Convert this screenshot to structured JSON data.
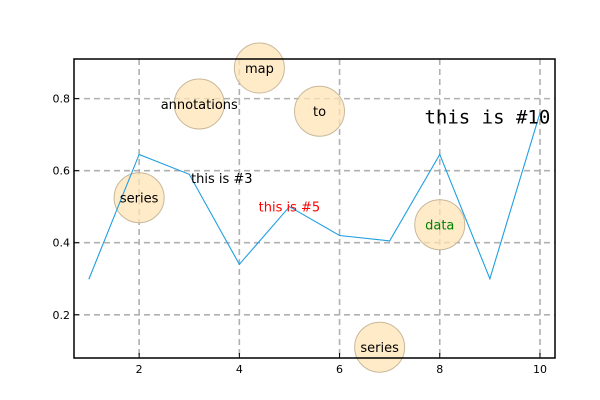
{
  "chart_data": {
    "type": "line",
    "x": [
      1,
      2,
      3,
      4,
      5,
      6,
      7,
      8,
      9,
      10
    ],
    "series": [
      {
        "values": [
          0.3,
          0.645,
          0.59,
          0.34,
          0.5,
          0.42,
          0.405,
          0.645,
          0.3,
          0.76
        ],
        "color": "#1f9fe0"
      }
    ],
    "xlim": [
      0.7,
      10.3
    ],
    "ylim": [
      0.08,
      0.91
    ],
    "xticks": [
      2,
      4,
      6,
      8,
      10
    ],
    "yticks": [
      0.2,
      0.4,
      0.6,
      0.8
    ],
    "xtick_labels": [
      "2",
      "4",
      "6",
      "8",
      "10"
    ],
    "ytick_labels": [
      "0.2",
      "0.4",
      "0.6",
      "0.8"
    ],
    "grid": true,
    "bubbles": [
      {
        "x": 2.0,
        "y": 0.525
      },
      {
        "x": 3.2,
        "y": 0.785
      },
      {
        "x": 4.4,
        "y": 0.885
      },
      {
        "x": 5.6,
        "y": 0.765
      },
      {
        "x": 6.8,
        "y": 0.11
      },
      {
        "x": 8.0,
        "y": 0.45
      }
    ],
    "annotations": [
      {
        "text": "series",
        "x": 2.0,
        "y": 0.525,
        "color": "#000000",
        "style": "sans"
      },
      {
        "text": "annotations",
        "x": 3.2,
        "y": 0.785,
        "color": "#000000",
        "style": "sans"
      },
      {
        "text": "map",
        "x": 4.4,
        "y": 0.885,
        "color": "#000000",
        "style": "sans"
      },
      {
        "text": "to",
        "x": 5.6,
        "y": 0.765,
        "color": "#000000",
        "style": "sans"
      },
      {
        "text": "series",
        "x": 6.8,
        "y": 0.11,
        "color": "#000000",
        "style": "sans"
      },
      {
        "text": "data",
        "x": 8.0,
        "y": 0.45,
        "color": "#008000",
        "style": "sans"
      },
      {
        "text": "this is #3",
        "x": 3.65,
        "y": 0.58,
        "color": "#000000",
        "style": "sans"
      },
      {
        "text": "this is #5",
        "x": 5.0,
        "y": 0.5,
        "color": "#ff0000",
        "style": "sans"
      },
      {
        "text": "this is #10",
        "x": 8.95,
        "y": 0.75,
        "color": "#000000",
        "style": "mono"
      }
    ]
  }
}
